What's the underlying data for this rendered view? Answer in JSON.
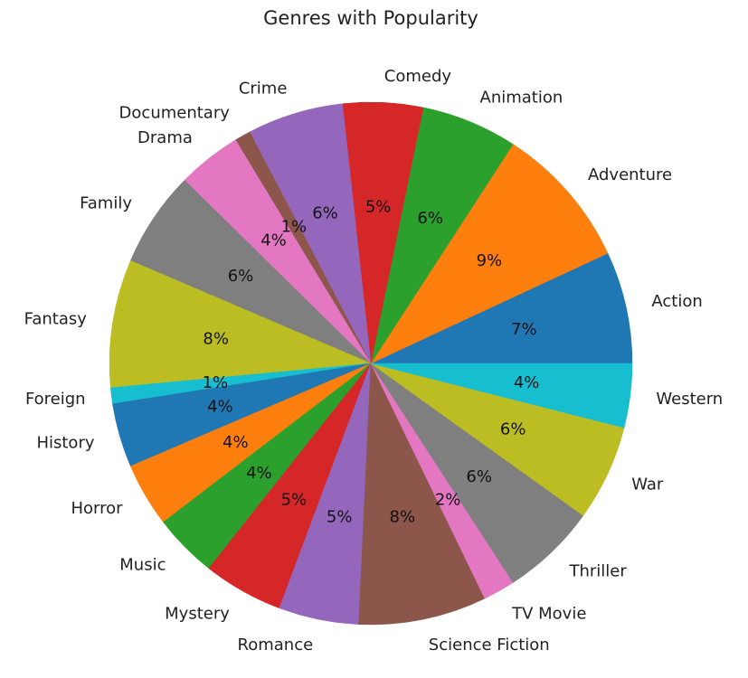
{
  "chart_data": {
    "type": "pie",
    "title": "Genres with Popularity",
    "start_angle_deg": 0,
    "direction": "counterclockwise",
    "slices": [
      {
        "label": "Action",
        "value": 7,
        "pct_label": "7%",
        "color": "#1f77b4"
      },
      {
        "label": "Adventure",
        "value": 9,
        "pct_label": "9%",
        "color": "#ff7f0e"
      },
      {
        "label": "Animation",
        "value": 6,
        "pct_label": "6%",
        "color": "#2ca02c"
      },
      {
        "label": "Comedy",
        "value": 5,
        "pct_label": "5%",
        "color": "#d62728"
      },
      {
        "label": "Crime",
        "value": 6,
        "pct_label": "6%",
        "color": "#9467bd"
      },
      {
        "label": "Documentary",
        "value": 1,
        "pct_label": "1%",
        "color": "#8c564b"
      },
      {
        "label": "Drama",
        "value": 4,
        "pct_label": "4%",
        "color": "#e377c2"
      },
      {
        "label": "Family",
        "value": 6,
        "pct_label": "6%",
        "color": "#7f7f7f"
      },
      {
        "label": "Fantasy",
        "value": 8,
        "pct_label": "8%",
        "color": "#bcbd22"
      },
      {
        "label": "Foreign",
        "value": 1,
        "pct_label": "1%",
        "color": "#17becf"
      },
      {
        "label": "History",
        "value": 4,
        "pct_label": "4%",
        "color": "#1f77b4"
      },
      {
        "label": "Horror",
        "value": 4,
        "pct_label": "4%",
        "color": "#ff7f0e"
      },
      {
        "label": "Music",
        "value": 4,
        "pct_label": "4%",
        "color": "#2ca02c"
      },
      {
        "label": "Mystery",
        "value": 5,
        "pct_label": "5%",
        "color": "#d62728"
      },
      {
        "label": "Romance",
        "value": 5,
        "pct_label": "5%",
        "color": "#9467bd"
      },
      {
        "label": "Science Fiction",
        "value": 8,
        "pct_label": "8%",
        "color": "#8c564b"
      },
      {
        "label": "TV Movie",
        "value": 2,
        "pct_label": "2%",
        "color": "#e377c2"
      },
      {
        "label": "Thriller",
        "value": 6,
        "pct_label": "6%",
        "color": "#7f7f7f"
      },
      {
        "label": "War",
        "value": 6,
        "pct_label": "6%",
        "color": "#bcbd22"
      },
      {
        "label": "Western",
        "value": 4,
        "pct_label": "4%",
        "color": "#17becf"
      }
    ]
  }
}
